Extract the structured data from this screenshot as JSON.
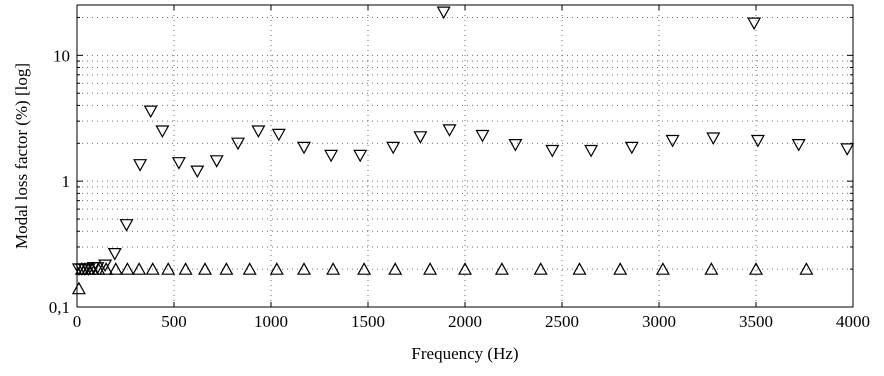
{
  "chart_data": {
    "type": "scatter",
    "title": "",
    "xlabel": "Frequency (Hz)",
    "ylabel": "Modal loss factor (%) [log]",
    "xlim": [
      0,
      4000
    ],
    "ylim": [
      0.1,
      25
    ],
    "y_scale": "log",
    "grid": true,
    "x_ticks": [
      {
        "value": 0,
        "label": "0"
      },
      {
        "value": 500,
        "label": "500"
      },
      {
        "value": 1000,
        "label": "1000"
      },
      {
        "value": 1500,
        "label": "1500"
      },
      {
        "value": 2000,
        "label": "2000"
      },
      {
        "value": 2500,
        "label": "2500"
      },
      {
        "value": 3000,
        "label": "3000"
      },
      {
        "value": 3500,
        "label": "3500"
      },
      {
        "value": 4000,
        "label": "4000"
      }
    ],
    "y_ticks": [
      {
        "value": 0.1,
        "label": "0,1"
      },
      {
        "value": 1,
        "label": "1"
      },
      {
        "value": 10,
        "label": "10"
      }
    ],
    "series": [
      {
        "marker": "triangle-down",
        "points": [
          [
            10,
            0.2
          ],
          [
            25,
            0.2
          ],
          [
            40,
            0.2
          ],
          [
            60,
            0.2
          ],
          [
            85,
            0.205
          ],
          [
            105,
            0.205
          ],
          [
            145,
            0.215
          ],
          [
            195,
            0.265
          ],
          [
            255,
            0.45
          ],
          [
            325,
            1.35
          ],
          [
            380,
            3.6
          ],
          [
            440,
            2.5
          ],
          [
            525,
            1.4
          ],
          [
            620,
            1.2
          ],
          [
            720,
            1.45
          ],
          [
            830,
            2.0
          ],
          [
            935,
            2.5
          ],
          [
            1040,
            2.35
          ],
          [
            1170,
            1.85
          ],
          [
            1310,
            1.6
          ],
          [
            1460,
            1.6
          ],
          [
            1630,
            1.85
          ],
          [
            1770,
            2.25
          ],
          [
            1890,
            22
          ],
          [
            1920,
            2.55
          ],
          [
            2090,
            2.3
          ],
          [
            2260,
            1.95
          ],
          [
            2450,
            1.75
          ],
          [
            2650,
            1.75
          ],
          [
            2860,
            1.85
          ],
          [
            3070,
            2.1
          ],
          [
            3280,
            2.2
          ],
          [
            3490,
            18
          ],
          [
            3510,
            2.1
          ],
          [
            3720,
            1.95
          ],
          [
            3970,
            1.8
          ]
        ]
      },
      {
        "marker": "triangle-up",
        "points": [
          [
            10,
            0.14
          ],
          [
            25,
            0.2
          ],
          [
            40,
            0.2
          ],
          [
            60,
            0.2
          ],
          [
            80,
            0.2
          ],
          [
            110,
            0.2
          ],
          [
            150,
            0.2
          ],
          [
            200,
            0.2
          ],
          [
            260,
            0.2
          ],
          [
            320,
            0.2
          ],
          [
            390,
            0.2
          ],
          [
            470,
            0.2
          ],
          [
            560,
            0.2
          ],
          [
            660,
            0.2
          ],
          [
            770,
            0.2
          ],
          [
            890,
            0.2
          ],
          [
            1030,
            0.2
          ],
          [
            1170,
            0.2
          ],
          [
            1320,
            0.2
          ],
          [
            1480,
            0.2
          ],
          [
            1640,
            0.2
          ],
          [
            1820,
            0.2
          ],
          [
            2000,
            0.2
          ],
          [
            2190,
            0.2
          ],
          [
            2390,
            0.2
          ],
          [
            2590,
            0.2
          ],
          [
            2800,
            0.2
          ],
          [
            3020,
            0.2
          ],
          [
            3270,
            0.2
          ],
          [
            3500,
            0.2
          ],
          [
            3760,
            0.2
          ]
        ]
      }
    ]
  }
}
